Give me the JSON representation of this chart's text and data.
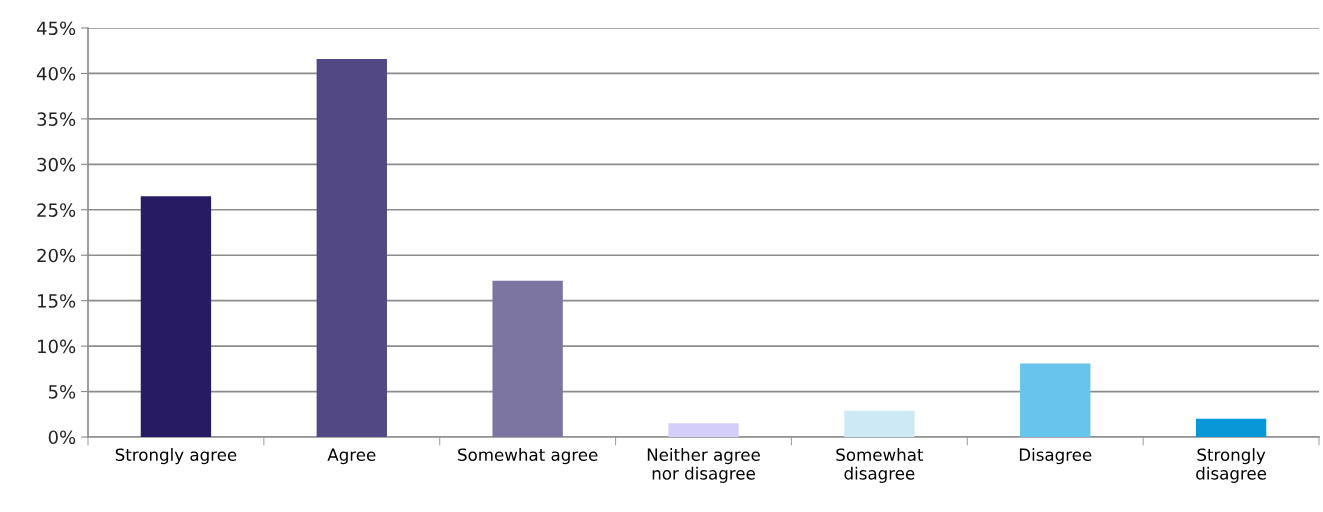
{
  "chart_data": {
    "type": "bar",
    "categories": [
      "Strongly agree",
      "Agree",
      "Somewhat agree",
      "Neither agree\nnor disagree",
      "Somewhat\ndisagree",
      "Disagree",
      "Strongly\ndisagree"
    ],
    "values": [
      26.5,
      41.6,
      17.2,
      1.5,
      2.9,
      8.1,
      2.0
    ],
    "colors": [
      "#271c64",
      "#524883",
      "#7c75a1",
      "#d4cffa",
      "#cde9f5",
      "#66c4ed",
      "#0898d8"
    ],
    "ylim": [
      0,
      45
    ],
    "yticks": [
      {
        "value": 0,
        "label": "0%"
      },
      {
        "value": 5,
        "label": "5%"
      },
      {
        "value": 10,
        "label": "10%"
      },
      {
        "value": 15,
        "label": "15%"
      },
      {
        "value": 20,
        "label": "20%"
      },
      {
        "value": 25,
        "label": "25%"
      },
      {
        "value": 30,
        "label": "30%"
      },
      {
        "value": 35,
        "label": "35%"
      },
      {
        "value": 40,
        "label": "40%"
      },
      {
        "value": 45,
        "label": "45%"
      }
    ],
    "grid": "y"
  }
}
